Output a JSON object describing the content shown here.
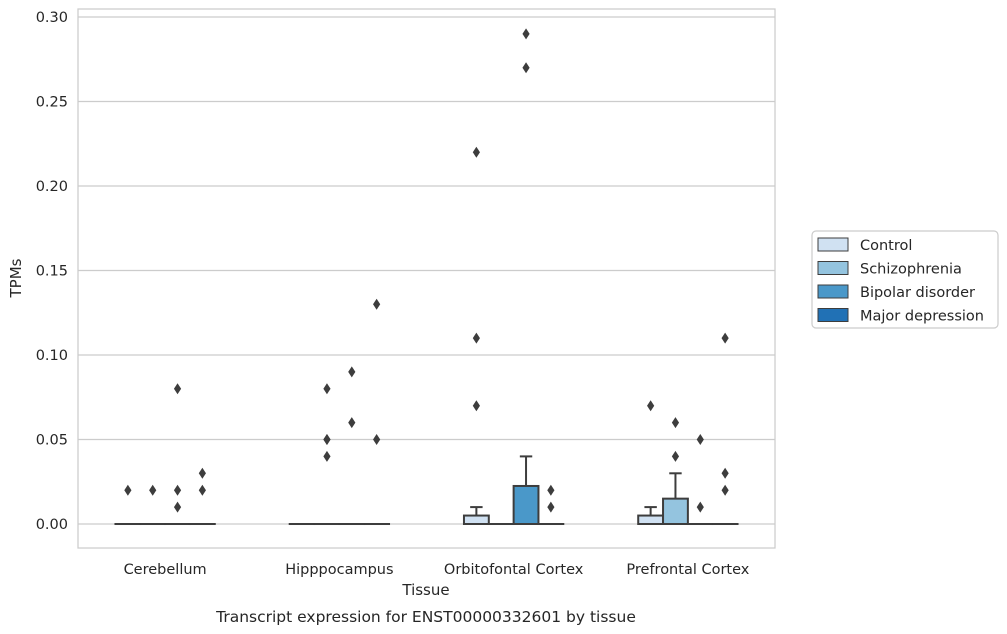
{
  "chart_data": {
    "type": "box",
    "title": "Transcript expression for ENST00000332601 by tissue",
    "xlabel": "Tissue",
    "ylabel": "TPMs",
    "ylim": [
      -0.014,
      0.303
    ],
    "yticks": [
      "0.00",
      "0.05",
      "0.10",
      "0.15",
      "0.20",
      "0.25",
      "0.30"
    ],
    "grid": "horizontal",
    "legend_position": "right",
    "categories": [
      "Cerebellum",
      "Hipppocampus",
      "Orbitofontal Cortex",
      "Prefrontal Cortex"
    ],
    "series": [
      {
        "name": "Control",
        "color": "#d0e1f2",
        "boxes": [
          {
            "q1": 0,
            "median": 0,
            "q3": 0,
            "whisker_low": 0,
            "whisker_high": 0,
            "outliers": [
              0.02
            ]
          },
          {
            "q1": 0,
            "median": 0,
            "q3": 0,
            "whisker_low": 0,
            "whisker_high": 0,
            "outliers": []
          },
          {
            "q1": 0,
            "median": 0,
            "q3": 0.005,
            "whisker_low": 0,
            "whisker_high": 0.01,
            "outliers": [
              0.07,
              0.11,
              0.22
            ]
          },
          {
            "q1": 0,
            "median": 0,
            "q3": 0.005,
            "whisker_low": 0,
            "whisker_high": 0.01,
            "outliers": [
              0.07
            ]
          }
        ]
      },
      {
        "name": "Schizophrenia",
        "color": "#94c4df",
        "boxes": [
          {
            "q1": 0,
            "median": 0,
            "q3": 0,
            "whisker_low": 0,
            "whisker_high": 0,
            "outliers": [
              0.02
            ]
          },
          {
            "q1": 0,
            "median": 0,
            "q3": 0,
            "whisker_low": 0,
            "whisker_high": 0,
            "outliers": [
              0.04,
              0.05,
              0.08,
              0.05
            ]
          },
          {
            "q1": 0,
            "median": 0,
            "q3": 0,
            "whisker_low": 0,
            "whisker_high": 0,
            "outliers": []
          },
          {
            "q1": 0,
            "median": 0,
            "q3": 0.015,
            "whisker_low": 0,
            "whisker_high": 0.03,
            "outliers": [
              0.04,
              0.06
            ]
          }
        ]
      },
      {
        "name": "Bipolar disorder",
        "color": "#4a98c9",
        "boxes": [
          {
            "q1": 0,
            "median": 0,
            "q3": 0,
            "whisker_low": 0,
            "whisker_high": 0,
            "outliers": [
              0.01,
              0.02,
              0.08
            ]
          },
          {
            "q1": 0,
            "median": 0,
            "q3": 0,
            "whisker_low": 0,
            "whisker_high": 0,
            "outliers": [
              0.06,
              0.09
            ]
          },
          {
            "q1": 0,
            "median": 0,
            "q3": 0.0225,
            "whisker_low": 0,
            "whisker_high": 0.04,
            "outliers": [
              0.27,
              0.29
            ]
          },
          {
            "q1": 0,
            "median": 0,
            "q3": 0,
            "whisker_low": 0,
            "whisker_high": 0,
            "outliers": [
              0.01,
              0.05
            ]
          }
        ]
      },
      {
        "name": "Major depression",
        "color": "#2171b5",
        "boxes": [
          {
            "q1": 0,
            "median": 0,
            "q3": 0,
            "whisker_low": 0,
            "whisker_high": 0,
            "outliers": [
              0.02,
              0.03
            ]
          },
          {
            "q1": 0,
            "median": 0,
            "q3": 0,
            "whisker_low": 0,
            "whisker_high": 0,
            "outliers": [
              0.05,
              0.13
            ]
          },
          {
            "q1": 0,
            "median": 0,
            "q3": 0,
            "whisker_low": 0,
            "whisker_high": 0,
            "outliers": [
              0.01,
              0.02
            ]
          },
          {
            "q1": 0,
            "median": 0,
            "q3": 0,
            "whisker_low": 0,
            "whisker_high": 0,
            "outliers": [
              0.02,
              0.03,
              0.11
            ]
          }
        ]
      }
    ]
  }
}
